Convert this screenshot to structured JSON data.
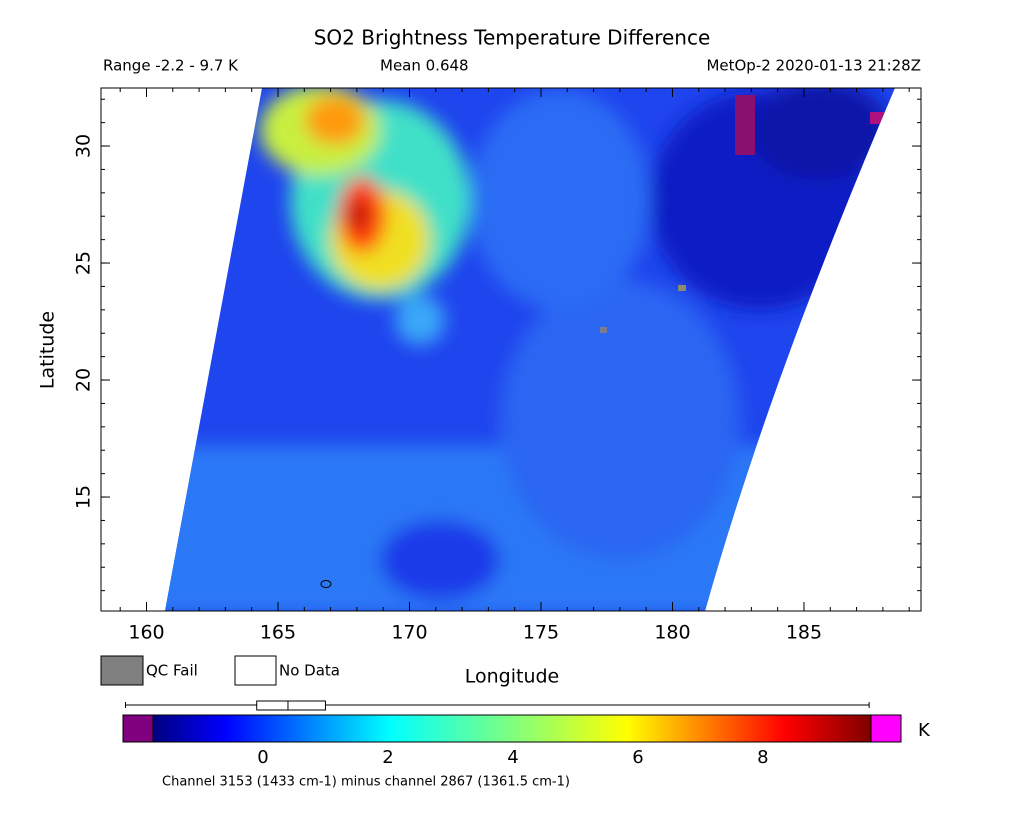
{
  "chart_data": {
    "type": "heatmap",
    "title": "SO2 Brightness Temperature Difference",
    "subtitle_left": "Range -2.2 - 9.7 K",
    "subtitle_center": "Mean 0.648",
    "subtitle_right": "MetOp-2 2020-01-13 21:28Z",
    "x_label": "Longitude",
    "y_label": "Latitude",
    "xlim": [
      158.27,
      189.45
    ],
    "xticks": [
      160,
      165,
      170,
      175,
      180,
      185
    ],
    "ylim": [
      10.13,
      32.48
    ],
    "yticks": [
      15,
      20,
      25,
      30
    ],
    "legend": [
      {
        "name": "QC Fail",
        "color": "#808080"
      },
      {
        "name": "No Data",
        "color": "#ffffff"
      }
    ],
    "colorbar": {
      "lim": [
        -1.76,
        9.73
      ],
      "ticks": [
        0,
        2,
        4,
        6,
        8
      ],
      "unit": "K",
      "under_color": "#800080",
      "over_color": "#ff00ff"
    },
    "boxplot": {
      "min": -2.2,
      "q1": -0.1,
      "median": 0.4,
      "q3": 1.0,
      "max": 9.7
    },
    "footnote": "Channel 3153 (1433 cm-1) minus channel 2867 (1361.5 cm-1)"
  }
}
